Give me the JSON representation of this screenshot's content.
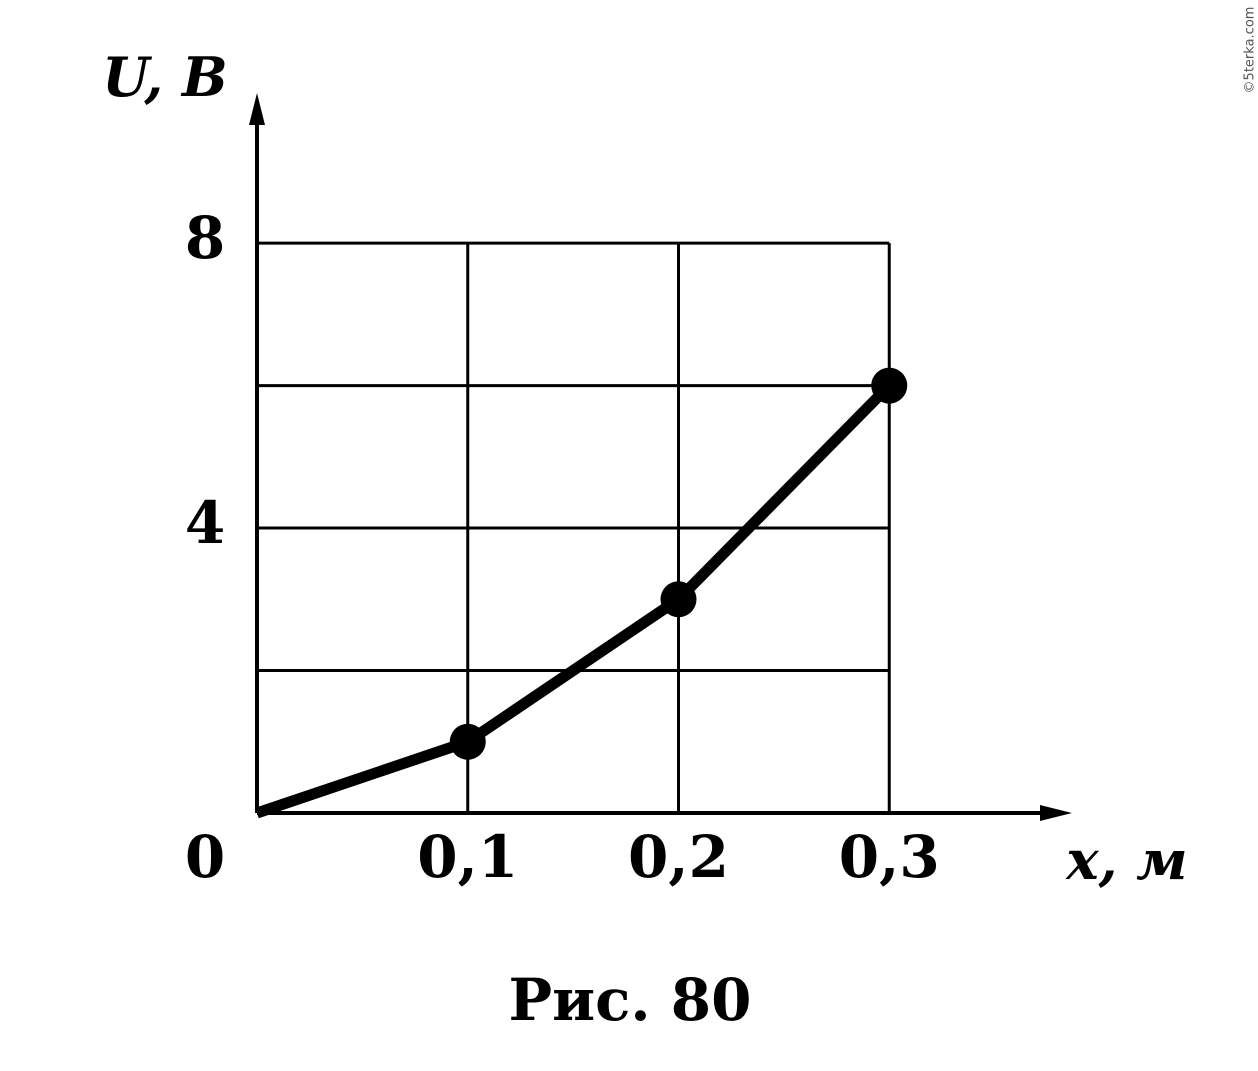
{
  "chart_data": {
    "type": "line",
    "x_label": "x, м",
    "y_label": "U, В",
    "caption": "Рис. 80",
    "watermark": "©5terka.com",
    "x": [
      0,
      0.1,
      0.2,
      0.3
    ],
    "series": [
      {
        "values": [
          0,
          1,
          3,
          6
        ],
        "color": "#000000"
      }
    ],
    "xlim": [
      0,
      0.4
    ],
    "ylim": [
      0,
      10.5
    ],
    "xticks": [
      0,
      {
        "value": 0.1,
        "label": "0,1"
      },
      {
        "value": 0.2,
        "label": "0,2"
      },
      {
        "value": 0.3,
        "label": "0,3"
      }
    ],
    "yticks": [
      4,
      8
    ],
    "yminor": [
      2,
      6
    ],
    "grid": true
  }
}
